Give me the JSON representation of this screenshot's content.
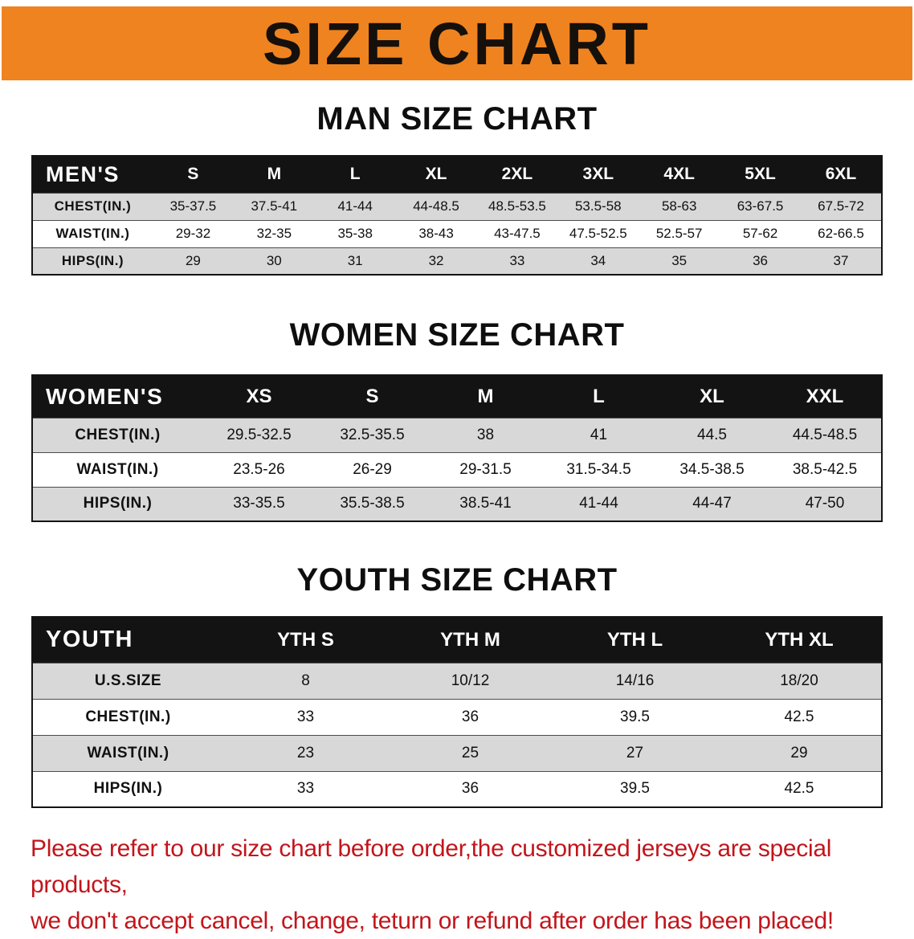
{
  "banner": {
    "title": "SIZE CHART"
  },
  "colors": {
    "banner_bg": "#ef8320",
    "header_bg": "#131313",
    "row_gray": "#d8d8d8",
    "note_red": "#c2151b"
  },
  "men": {
    "heading": "MAN SIZE CHART",
    "header": [
      "MEN'S",
      "S",
      "M",
      "L",
      "XL",
      "2XL",
      "3XL",
      "4XL",
      "5XL",
      "6XL"
    ],
    "rows": [
      [
        "CHEST(IN.)",
        "35-37.5",
        "37.5-41",
        "41-44",
        "44-48.5",
        "48.5-53.5",
        "53.5-58",
        "58-63",
        "63-67.5",
        "67.5-72"
      ],
      [
        "WAIST(IN.)",
        "29-32",
        "32-35",
        "35-38",
        "38-43",
        "43-47.5",
        "47.5-52.5",
        "52.5-57",
        "57-62",
        "62-66.5"
      ],
      [
        "HIPS(IN.)",
        "29",
        "30",
        "31",
        "32",
        "33",
        "34",
        "35",
        "36",
        "37"
      ]
    ]
  },
  "women": {
    "heading": "WOMEN SIZE CHART",
    "header": [
      "WOMEN'S",
      "XS",
      "S",
      "M",
      "L",
      "XL",
      "XXL"
    ],
    "rows": [
      [
        "CHEST(IN.)",
        "29.5-32.5",
        "32.5-35.5",
        "38",
        "41",
        "44.5",
        "44.5-48.5"
      ],
      [
        "WAIST(IN.)",
        "23.5-26",
        "26-29",
        "29-31.5",
        "31.5-34.5",
        "34.5-38.5",
        "38.5-42.5"
      ],
      [
        "HIPS(IN.)",
        "33-35.5",
        "35.5-38.5",
        "38.5-41",
        "41-44",
        "44-47",
        "47-50"
      ]
    ]
  },
  "youth": {
    "heading": "YOUTH SIZE CHART",
    "header": [
      "YOUTH",
      "YTH S",
      "YTH M",
      "YTH L",
      "YTH XL"
    ],
    "rows": [
      [
        "U.S.SIZE",
        "8",
        "10/12",
        "14/16",
        "18/20"
      ],
      [
        "CHEST(IN.)",
        "33",
        "36",
        "39.5",
        "42.5"
      ],
      [
        "WAIST(IN.)",
        "23",
        "25",
        "27",
        "29"
      ],
      [
        "HIPS(IN.)",
        "33",
        "36",
        "39.5",
        "42.5"
      ]
    ]
  },
  "footer": {
    "line1": "Please refer to our size chart before order,the customized jerseys are special products,",
    "line2": "we don't accept cancel, change, teturn or refund after order has been placed!"
  }
}
